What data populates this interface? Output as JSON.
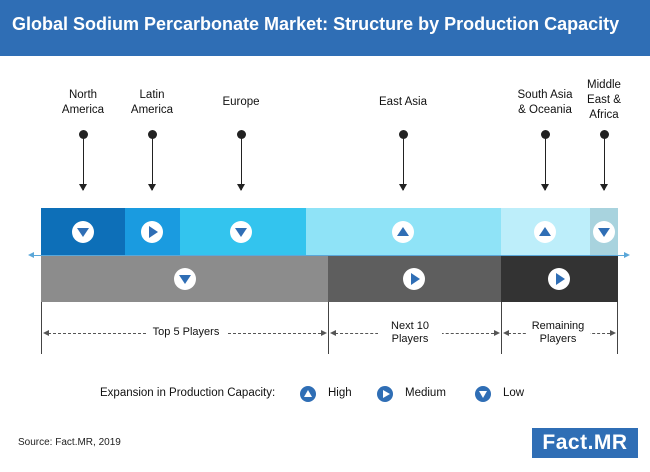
{
  "title": "Global Sodium Percarbonate Market: Structure by Production Capacity",
  "regions": [
    {
      "label": "North\nAmerica",
      "indicator": "low",
      "color": "#0d6fb8"
    },
    {
      "label": "Latin\nAmerica",
      "indicator": "medium",
      "color": "#1a9be0"
    },
    {
      "label": "Europe",
      "indicator": "low",
      "color": "#33c4ee"
    },
    {
      "label": "East Asia",
      "indicator": "high",
      "color": "#8fe3f7"
    },
    {
      "label": "South Asia\n& Oceania",
      "indicator": "high",
      "color": "#bdeefa"
    },
    {
      "label": "Middle\nEast &\nAfrica",
      "indicator": "low",
      "color": "#a8d3de"
    }
  ],
  "player_groups": [
    {
      "label": "Top 5 Players",
      "indicator": "low",
      "color": "#8c8c8c"
    },
    {
      "label": "Next 10\nPlayers",
      "indicator": "medium",
      "color": "#5e5e5e"
    },
    {
      "label": "Remaining\nPlayers",
      "indicator": "medium",
      "color": "#333333"
    }
  ],
  "legend": {
    "title": "Expansion in Production Capacity:",
    "items": [
      {
        "icon": "high-triangle-icon",
        "label": "High"
      },
      {
        "icon": "medium-triangle-icon",
        "label": "Medium"
      },
      {
        "icon": "low-triangle-icon",
        "label": "Low"
      }
    ]
  },
  "source": "Source: Fact.MR, 2019",
  "logo": "Fact.MR",
  "colors": {
    "brand": "#2f6eb5",
    "axis": "#5aa7d9"
  }
}
